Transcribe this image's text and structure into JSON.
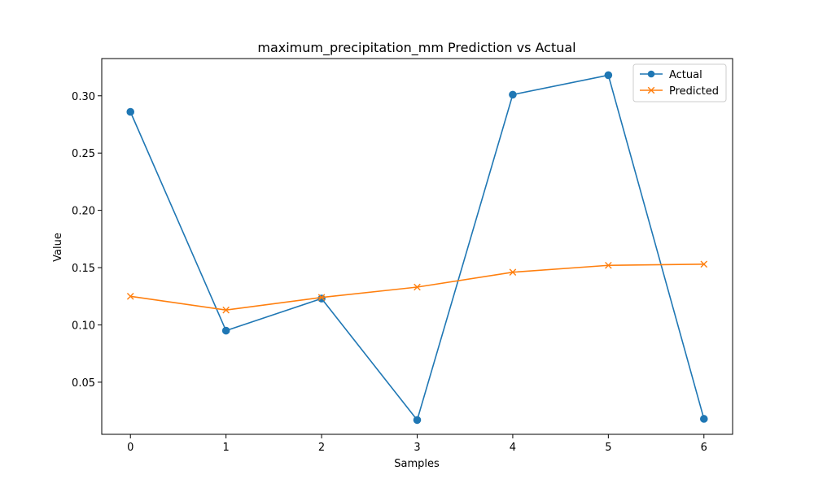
{
  "chart_data": {
    "type": "line",
    "title": "maximum_precipitation_mm Prediction vs Actual",
    "xlabel": "Samples",
    "ylabel": "Value",
    "x": [
      0,
      1,
      2,
      3,
      4,
      5,
      6
    ],
    "xlim": [
      -0.3,
      6.3
    ],
    "ylim": [
      0.0045,
      0.3325
    ],
    "xticks": [
      0,
      1,
      2,
      3,
      4,
      5,
      6
    ],
    "yticks": [
      0.05,
      0.1,
      0.15,
      0.2,
      0.25,
      0.3
    ],
    "ytick_labels": [
      "0.05",
      "0.10",
      "0.15",
      "0.20",
      "0.25",
      "0.30"
    ],
    "grid": false,
    "legend_position": "top-right",
    "series": [
      {
        "name": "Actual",
        "color": "#1f77b4",
        "marker": "circle",
        "values": [
          0.286,
          0.095,
          0.123,
          0.017,
          0.301,
          0.318,
          0.018
        ]
      },
      {
        "name": "Predicted",
        "color": "#ff7f0e",
        "marker": "x",
        "values": [
          0.125,
          0.113,
          0.124,
          0.133,
          0.146,
          0.152,
          0.153
        ]
      }
    ]
  }
}
